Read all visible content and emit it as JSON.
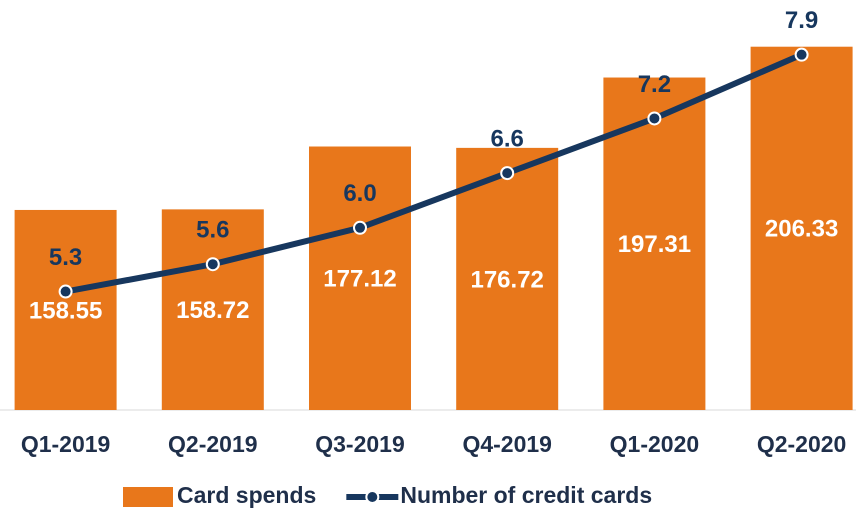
{
  "chart_data": {
    "type": "bar",
    "categories": [
      "Q1-2019",
      "Q2-2019",
      "Q3-2019",
      "Q4-2019",
      "Q1-2020",
      "Q2-2020"
    ],
    "series": [
      {
        "name": "Card spends",
        "type": "bar",
        "color": "#e8771b",
        "values": [
          158.55,
          158.72,
          177.12,
          176.72,
          197.31,
          206.33
        ]
      },
      {
        "name": "Number of credit cards",
        "type": "line",
        "axis": "y2",
        "color": "#17375e",
        "values": [
          5.3,
          5.6,
          6.0,
          6.6,
          7.2,
          7.9
        ],
        "value_labels": [
          "5.3",
          "5.6",
          "6.0",
          "6.6",
          "7.2",
          "7.9"
        ]
      }
    ],
    "ylim": [
      100,
      220
    ],
    "y2lim": [
      4,
      8.5
    ]
  }
}
